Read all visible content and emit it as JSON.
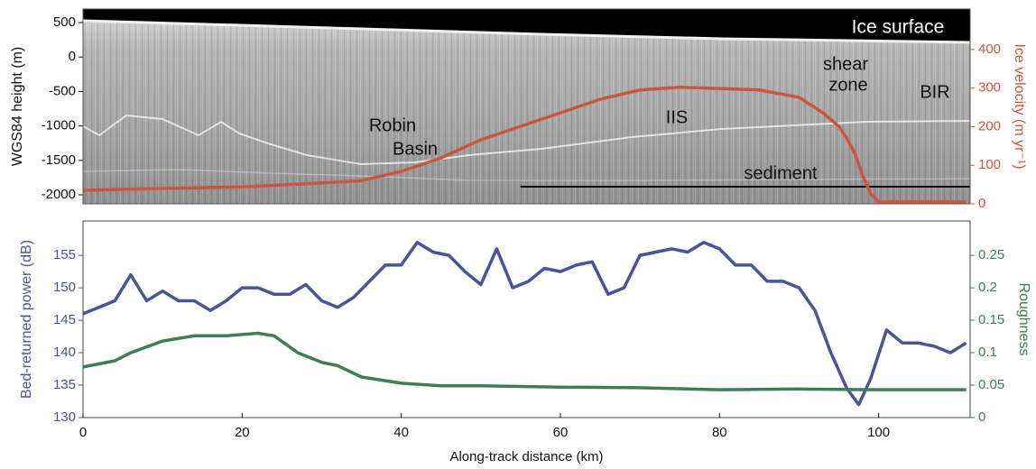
{
  "chart_data": [
    {
      "type": "line",
      "ylabel": "WGS84 height (m)",
      "y2label": "Ice velocity (m yr⁻¹)",
      "xlim": [
        0,
        111.5
      ],
      "ylim": [
        -2131,
        696
      ],
      "yticks": [
        500,
        0,
        -500,
        -1000,
        -1500,
        -2000
      ],
      "y2lim": [
        0,
        505
      ],
      "y2ticks": [
        0,
        100,
        200,
        300,
        400
      ],
      "annotations": [
        "Ice surface",
        "shear",
        "zone",
        "BIR",
        "Robin",
        "Basin",
        "IIS",
        "sediment"
      ],
      "series": [
        {
          "color": "#c9573f",
          "axis": "y2",
          "x": [
            0,
            10,
            20,
            30,
            35,
            40,
            45,
            50,
            55,
            60,
            65,
            70,
            75,
            80,
            85,
            90,
            93,
            95,
            96,
            97,
            98,
            99,
            100,
            105,
            111
          ],
          "values": [
            35,
            40,
            44,
            54,
            60,
            84,
            119,
            166,
            201,
            236,
            271,
            295,
            302,
            299,
            295,
            276,
            236,
            201,
            170,
            131,
            73,
            26,
            5,
            5,
            5
          ]
        }
      ]
    },
    {
      "type": "line",
      "xlabel": "Along-track distance (km)",
      "ylabel": "Bed-returned power (dB)",
      "y2label": "Roughness",
      "xlim": [
        0,
        111.5
      ],
      "xticks": [
        0,
        20,
        40,
        60,
        80,
        100
      ],
      "ylim": [
        130,
        160.3
      ],
      "yticks": [
        130,
        135,
        140,
        145,
        150,
        155
      ],
      "y2lim": [
        0,
        0.303
      ],
      "y2ticks": [
        0,
        0.05,
        0.1,
        0.15,
        0.2,
        0.25
      ],
      "series": [
        {
          "color": "#4a5496",
          "axis": "y",
          "x": [
            0,
            2,
            4,
            6,
            8,
            10,
            12,
            14,
            16,
            18,
            20,
            22,
            24,
            26,
            28,
            30,
            32,
            34,
            36,
            38,
            40,
            42,
            44,
            46,
            48,
            50,
            52,
            54,
            56,
            58,
            60,
            62,
            64,
            66,
            68,
            70,
            72,
            74,
            76,
            78,
            80,
            82,
            84,
            86,
            88,
            90,
            92,
            94,
            96,
            97.5,
            99,
            101,
            103,
            105,
            107,
            109,
            111
          ],
          "values": [
            146,
            147,
            148,
            152,
            148,
            149.5,
            148,
            148,
            146.5,
            148,
            150,
            150,
            149,
            149,
            150.5,
            148,
            147,
            148.5,
            151,
            153.5,
            153.5,
            157,
            155.5,
            155,
            152.5,
            150.5,
            156,
            150,
            151,
            153,
            152.5,
            153.5,
            154,
            149,
            150,
            155,
            155.5,
            156,
            155.5,
            157,
            156,
            153.5,
            153.5,
            151,
            151,
            150,
            146.5,
            140,
            134.5,
            132,
            136,
            143.5,
            141.5,
            141.5,
            141,
            140,
            141.5
          ]
        },
        {
          "color": "#3e7d56",
          "axis": "y2",
          "x": [
            0,
            4,
            6,
            10,
            14,
            18,
            22,
            24,
            27,
            30,
            32,
            35,
            40,
            45,
            50,
            60,
            70,
            80,
            90,
            100,
            111
          ],
          "values": [
            0.078,
            0.0875,
            0.1,
            0.118,
            0.126,
            0.126,
            0.13,
            0.126,
            0.1,
            0.085,
            0.08,
            0.0625,
            0.053,
            0.049,
            0.049,
            0.047,
            0.046,
            0.043,
            0.044,
            0.043,
            0.043
          ]
        }
      ]
    }
  ]
}
